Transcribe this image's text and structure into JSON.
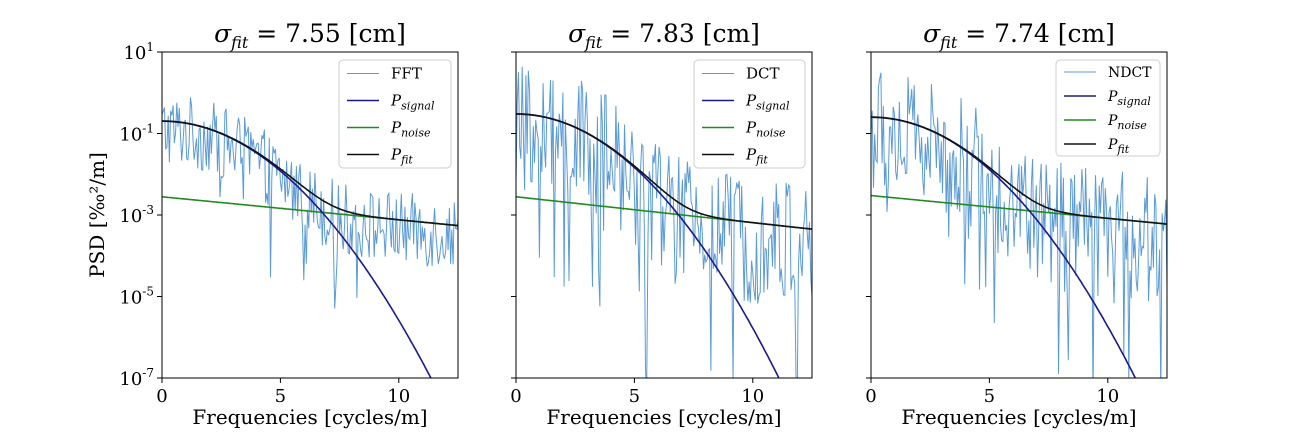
{
  "chart_data": [
    {
      "type": "line",
      "title": {
        "symbol": "σ",
        "sub": "fit",
        "rest": " = 7.55 [cm]"
      },
      "xlabel": "Frequencies [cycles/m]",
      "ylabel": "PSD [‰²/m]",
      "yscale": "log",
      "xlim": [
        0,
        12.5
      ],
      "ylim": [
        1e-07,
        10
      ],
      "xticks": [
        0,
        5,
        10
      ],
      "yticks": [
        1e-07,
        1e-05,
        0.001,
        0.1,
        10
      ],
      "legend_position": "top-right",
      "fit_params": {
        "A": 0.2,
        "sigma_cm": 7.55,
        "noise": 0.00055
      },
      "noise_level": {
        "x": [
          0,
          12.5
        ],
        "y": [
          0.0028,
          0.00055
        ]
      },
      "spectrum_spread_decades": 0.9,
      "legend": [
        {
          "main": "FFT",
          "sub": "",
          "color": "#5b9bd5"
        },
        {
          "main": "P",
          "sub": "signal",
          "color": "#1a1a8c"
        },
        {
          "main": "P",
          "sub": "noise",
          "color": "#1f8a1f"
        },
        {
          "main": "P",
          "sub": "fit",
          "color": "#111111"
        }
      ],
      "series": [
        {
          "name": "FFT",
          "role": "spectrum",
          "color": "#5b9bd5"
        },
        {
          "name": "P_signal",
          "role": "signal",
          "color": "#1a1a8c"
        },
        {
          "name": "P_noise",
          "role": "noise",
          "color": "#1f8a1f"
        },
        {
          "name": "P_fit",
          "role": "fit",
          "color": "#111111"
        }
      ]
    },
    {
      "type": "line",
      "title": {
        "symbol": "σ",
        "sub": "fit",
        "rest": " = 7.83 [cm]"
      },
      "xlabel": "Frequencies [cycles/m]",
      "ylabel": "",
      "yscale": "log",
      "xlim": [
        0,
        12.5
      ],
      "ylim": [
        1e-07,
        10
      ],
      "xticks": [
        0,
        5,
        10
      ],
      "yticks": [
        1e-07,
        1e-05,
        0.001,
        0.1,
        10
      ],
      "legend_position": "top-right",
      "fit_params": {
        "A": 0.3,
        "sigma_cm": 7.83,
        "noise": 0.00045
      },
      "noise_level": {
        "x": [
          0,
          12.5
        ],
        "y": [
          0.0028,
          0.00045
        ]
      },
      "spectrum_spread_decades": 1.6,
      "legend": [
        {
          "main": "DCT",
          "sub": "",
          "color": "#5b9bd5"
        },
        {
          "main": "P",
          "sub": "signal",
          "color": "#1a1a8c"
        },
        {
          "main": "P",
          "sub": "noise",
          "color": "#1f8a1f"
        },
        {
          "main": "P",
          "sub": "fit",
          "color": "#111111"
        }
      ],
      "series": [
        {
          "name": "DCT",
          "role": "spectrum",
          "color": "#5b9bd5"
        },
        {
          "name": "P_signal",
          "role": "signal",
          "color": "#1a1a8c"
        },
        {
          "name": "P_noise",
          "role": "noise",
          "color": "#1f8a1f"
        },
        {
          "name": "P_fit",
          "role": "fit",
          "color": "#111111"
        }
      ]
    },
    {
      "type": "line",
      "title": {
        "symbol": "σ",
        "sub": "fit",
        "rest": " = 7.74 [cm]"
      },
      "xlabel": "Frequencies [cycles/m]",
      "ylabel": "",
      "yscale": "log",
      "xlim": [
        0,
        12.5
      ],
      "ylim": [
        1e-07,
        10
      ],
      "xticks": [
        0,
        5,
        10
      ],
      "yticks": [
        1e-07,
        1e-05,
        0.001,
        0.1,
        10
      ],
      "legend_position": "top-right",
      "fit_params": {
        "A": 0.25,
        "sigma_cm": 7.74,
        "noise": 0.0006
      },
      "noise_level": {
        "x": [
          0,
          12.5
        ],
        "y": [
          0.003,
          0.0006
        ]
      },
      "spectrum_spread_decades": 1.6,
      "legend": [
        {
          "main": "NDCT",
          "sub": "",
          "color": "#5b9bd5"
        },
        {
          "main": "P",
          "sub": "signal",
          "color": "#1a1a8c"
        },
        {
          "main": "P",
          "sub": "noise",
          "color": "#1f8a1f"
        },
        {
          "main": "P",
          "sub": "fit",
          "color": "#111111"
        }
      ],
      "series": [
        {
          "name": "NDCT",
          "role": "spectrum",
          "color": "#5b9bd5"
        },
        {
          "name": "P_signal",
          "role": "signal",
          "color": "#1a1a8c"
        },
        {
          "name": "P_noise",
          "role": "noise",
          "color": "#1f8a1f"
        },
        {
          "name": "P_fit",
          "role": "fit",
          "color": "#111111"
        }
      ]
    }
  ]
}
